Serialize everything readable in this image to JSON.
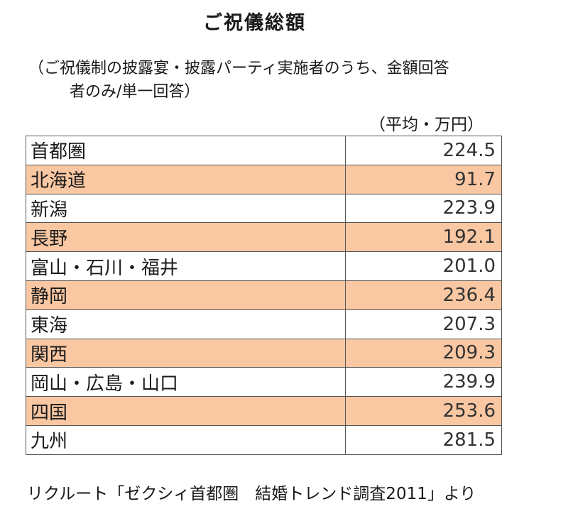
{
  "title": "ご祝儀総額",
  "subtitle": {
    "line1": "（ご祝儀制の披露宴・披露パーティ実施者のうち、金額回答",
    "line2": "者のみ/単一回答）"
  },
  "unit": "（平均・万円）",
  "table": {
    "rows": [
      {
        "region": "首都圏",
        "amount": "224.5"
      },
      {
        "region": "北海道",
        "amount": "91.7"
      },
      {
        "region": "新潟",
        "amount": "223.9"
      },
      {
        "region": "長野",
        "amount": "192.1"
      },
      {
        "region": "富山・石川・福井",
        "amount": "201.0"
      },
      {
        "region": "静岡",
        "amount": "236.4"
      },
      {
        "region": "東海",
        "amount": "207.3"
      },
      {
        "region": "関西",
        "amount": "209.3"
      },
      {
        "region": "岡山・広島・山口",
        "amount": "239.9"
      },
      {
        "region": "四国",
        "amount": "253.6"
      },
      {
        "region": "九州",
        "amount": "281.5"
      }
    ],
    "shade_color": "#f9c7a2"
  },
  "source": "リクルート「ゼクシィ首都圏　結婚トレンド調査2011」より"
}
